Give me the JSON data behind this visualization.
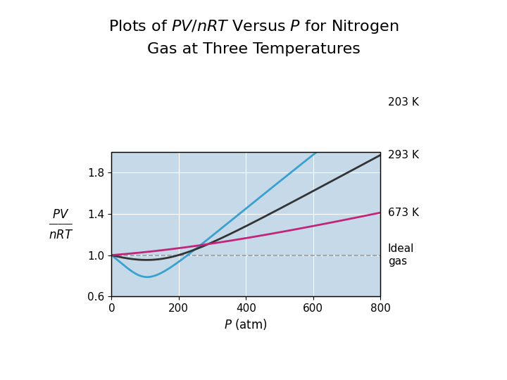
{
  "title_line1": "Plots of ",
  "title_italic1": "PV/nRT",
  "title_line1b": " Versus ",
  "title_italic2": "P",
  "title_line1c": " for Nitrogen",
  "title_line2": "Gas at Three Temperatures",
  "xlabel_italic": "P",
  "xlabel_unit": " (atm)",
  "ylabel_frac_num": "PV",
  "ylabel_frac_den": "nRT",
  "xlim": [
    0,
    800
  ],
  "ylim": [
    0.6,
    2.0
  ],
  "yticks": [
    0.6,
    1.0,
    1.4,
    1.8
  ],
  "xticks": [
    0,
    200,
    400,
    600,
    800
  ],
  "bg_color": "#c5d9e8",
  "ideal_gas_color": "#999999",
  "curve_203K_color": "#3ba0d0",
  "curve_293K_color": "#333333",
  "curve_673K_color": "#c0257a",
  "label_203K": "203 K",
  "label_293K": "293 K",
  "label_673K": "673 K",
  "label_ideal": "Ideal\ngas",
  "figsize": [
    7.2,
    5.4
  ],
  "dpi": 100
}
